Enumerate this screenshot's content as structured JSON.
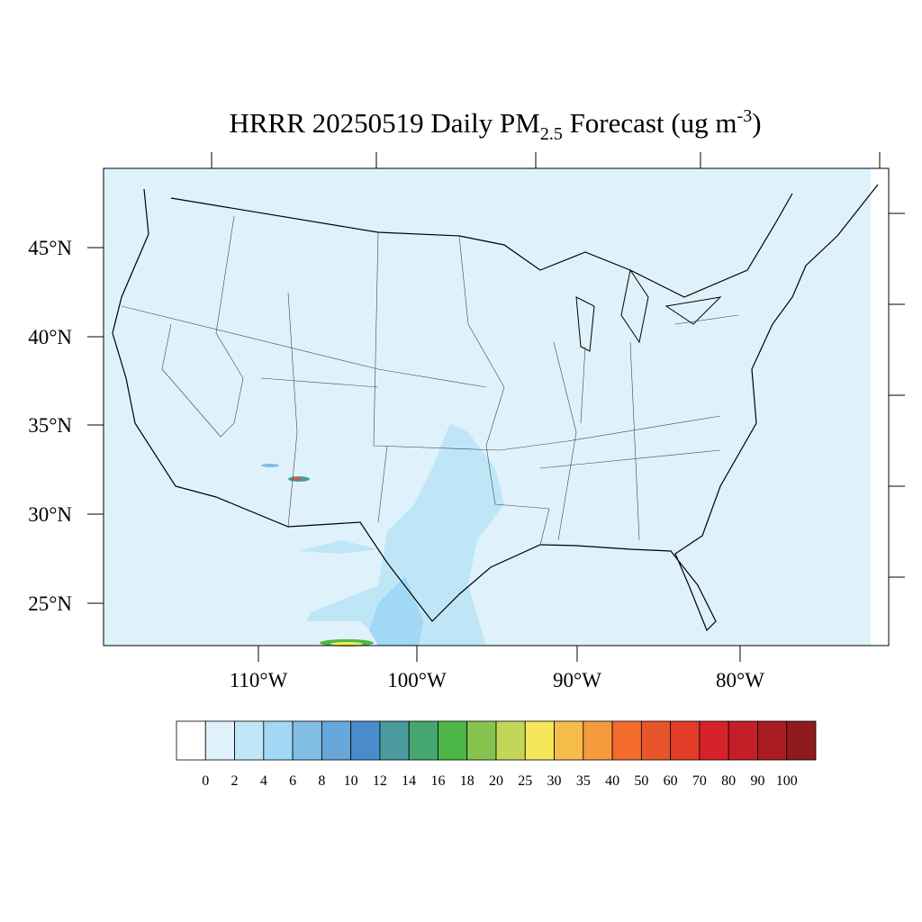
{
  "header": {
    "title_main": "HRRR 20250519 Daily PM",
    "title_sub": "2.5",
    "title_rest": " Forecast (ug m",
    "title_sup": "-3",
    "title_end": ")"
  },
  "map": {
    "lat_labels": [
      "45°N",
      "40°N",
      "35°N",
      "30°N",
      "25°N"
    ],
    "lon_labels": [
      "110°W",
      "100°W",
      "90°W",
      "80°W"
    ]
  },
  "colorbar": {
    "levels": [
      0,
      2,
      4,
      6,
      8,
      10,
      12,
      14,
      16,
      18,
      20,
      25,
      30,
      35,
      40,
      50,
      60,
      70,
      80,
      90,
      100
    ],
    "colors": [
      "#ffffff",
      "#dff2fb",
      "#bfe6f7",
      "#a0d8f5",
      "#82bde6",
      "#66a7dc",
      "#4a8bcb",
      "#4a9a9e",
      "#46a66f",
      "#4cb748",
      "#85c54f",
      "#c4d657",
      "#f6e75a",
      "#f7bd4a",
      "#f59b3d",
      "#f36b2d",
      "#e9552b",
      "#e03c28",
      "#d62229",
      "#c41e29",
      "#ab1b22",
      "#8f1a1c"
    ]
  }
}
